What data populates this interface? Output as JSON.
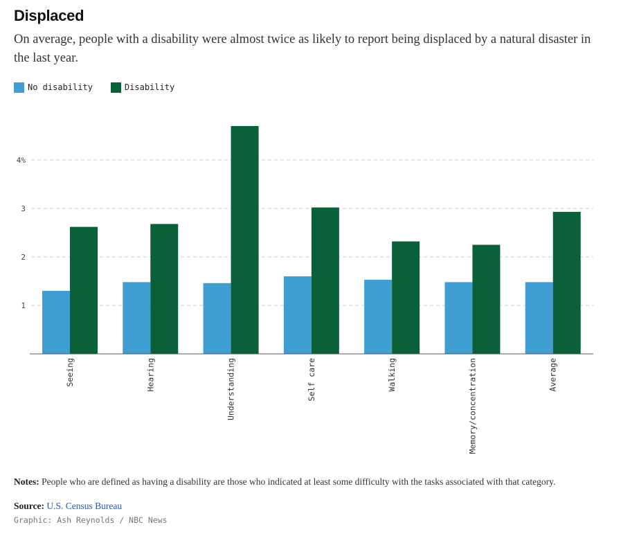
{
  "header": {
    "title": "Displaced",
    "subtitle": "On average, people with a disability were almost twice as likely to report being displaced by a natural disaster in the last year."
  },
  "colors": {
    "no_disability": "#3f9fd3",
    "disability": "#0b6137",
    "grid": "#cccccc",
    "axis": "#555555"
  },
  "chart_data": {
    "type": "bar",
    "categories": [
      "Seeing",
      "Hearing",
      "Understanding",
      "Self care",
      "Walking",
      "Memory/concentration",
      "Average"
    ],
    "series": [
      {
        "name": "No disability",
        "values": [
          1.3,
          1.48,
          1.46,
          1.6,
          1.53,
          1.48,
          1.48
        ]
      },
      {
        "name": "Disability",
        "values": [
          2.62,
          2.68,
          4.7,
          3.02,
          2.32,
          2.25,
          2.93
        ]
      }
    ],
    "ylim": [
      0,
      5
    ],
    "yticks": [
      1,
      2,
      3,
      4
    ],
    "ytick_labels": [
      "1",
      "2",
      "3",
      "4%"
    ],
    "grid": true,
    "legend": "top-left"
  },
  "footer": {
    "notes_label": "Notes:",
    "notes_text": "People who are defined as having a disability are those who indicated at least some difficulty with the tasks associated with that category.",
    "source_label": "Source:",
    "source_text": "U.S. Census Bureau",
    "credit": "Graphic: Ash Reynolds / NBC News"
  }
}
